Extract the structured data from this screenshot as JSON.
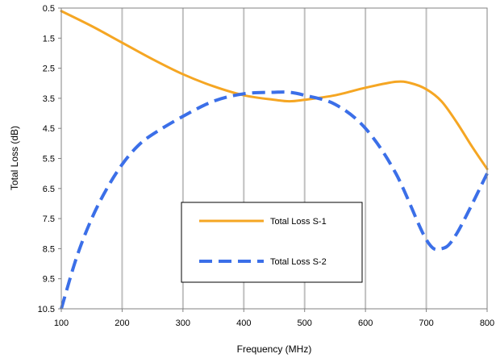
{
  "chart_data": {
    "type": "line",
    "title": "",
    "xlabel": "Frequency (MHz)",
    "ylabel": "Total Loss (dB)",
    "xlim": [
      100,
      800
    ],
    "ylim": [
      0.5,
      10.5
    ],
    "y_inverted": true,
    "x_ticks": [
      100,
      200,
      300,
      400,
      500,
      600,
      700,
      800
    ],
    "y_ticks": [
      0.5,
      1.5,
      2.5,
      3.5,
      4.5,
      5.5,
      6.5,
      7.5,
      8.5,
      9.5,
      10.5
    ],
    "x_tick_labels": [
      "100",
      "200",
      "300",
      "400",
      "500",
      "600",
      "700",
      "800"
    ],
    "y_tick_labels": [
      "0.5",
      "1.5",
      "2.5",
      "3.5",
      "4.5",
      "5.5",
      "6.5",
      "7.5",
      "8.5",
      "9.5",
      "10.5"
    ],
    "grid": {
      "vertical": true,
      "horizontal": false
    },
    "legend_position": "lower-center",
    "series": [
      {
        "name": "Total Loss S-1",
        "color": "#F5A623",
        "style": "solid",
        "x": [
          100,
          150,
          200,
          250,
          300,
          350,
          400,
          450,
          475,
          500,
          550,
          600,
          650,
          675,
          700,
          725,
          750,
          775,
          800
        ],
        "y": [
          0.6,
          1.1,
          1.65,
          2.2,
          2.7,
          3.1,
          3.4,
          3.55,
          3.6,
          3.55,
          3.4,
          3.15,
          2.95,
          3.0,
          3.2,
          3.6,
          4.3,
          5.1,
          5.85
        ]
      },
      {
        "name": "Total Loss S-2",
        "color": "#3B6FE8",
        "style": "dashed",
        "x": [
          100,
          125,
          150,
          175,
          200,
          225,
          250,
          300,
          350,
          400,
          450,
          475,
          500,
          550,
          600,
          650,
          700,
          725,
          750,
          800
        ],
        "y": [
          10.5,
          8.8,
          7.5,
          6.5,
          5.7,
          5.1,
          4.7,
          4.1,
          3.6,
          3.35,
          3.3,
          3.3,
          3.4,
          3.7,
          4.5,
          6.0,
          8.2,
          8.5,
          8.0,
          6.0
        ]
      }
    ]
  }
}
